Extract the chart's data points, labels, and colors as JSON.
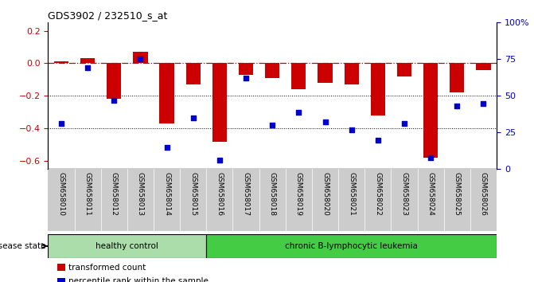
{
  "title": "GDS3902 / 232510_s_at",
  "samples": [
    "GSM658010",
    "GSM658011",
    "GSM658012",
    "GSM658013",
    "GSM658014",
    "GSM658015",
    "GSM658016",
    "GSM658017",
    "GSM658018",
    "GSM658019",
    "GSM658020",
    "GSM658021",
    "GSM658022",
    "GSM658023",
    "GSM658024",
    "GSM658025",
    "GSM658026"
  ],
  "bar_values": [
    0.01,
    0.03,
    -0.22,
    0.07,
    -0.37,
    -0.13,
    -0.48,
    -0.07,
    -0.09,
    -0.16,
    -0.12,
    -0.13,
    -0.32,
    -0.08,
    -0.58,
    -0.18,
    -0.04
  ],
  "dot_values": [
    0.31,
    0.69,
    0.47,
    0.75,
    0.15,
    0.35,
    0.06,
    0.62,
    0.3,
    0.39,
    0.32,
    0.27,
    0.2,
    0.31,
    0.08,
    0.43,
    0.45
  ],
  "bar_color": "#cc0000",
  "dot_color": "#0000cc",
  "ylim_left": [
    -0.65,
    0.25
  ],
  "ylim_right": [
    0,
    1.0
  ],
  "yticks_left": [
    0.2,
    0.0,
    -0.2,
    -0.4,
    -0.6
  ],
  "yticks_right_vals": [
    0.0,
    0.25,
    0.5,
    0.75,
    1.0
  ],
  "yticks_right_labels": [
    "0",
    "25",
    "50",
    "75",
    "100%"
  ],
  "hline_y": 0.0,
  "dotted_lines": [
    -0.2,
    -0.4
  ],
  "healthy_count": 6,
  "healthy_label": "healthy control",
  "leukemia_label": "chronic B-lymphocytic leukemia",
  "disease_state_label": "disease state",
  "legend_bar_label": "transformed count",
  "legend_dot_label": "percentile rank within the sample",
  "healthy_color": "#aaddaa",
  "leukemia_color": "#44cc44",
  "tick_label_area_color": "#cccccc",
  "bar_width": 0.55,
  "fig_width": 6.71,
  "fig_height": 3.54
}
